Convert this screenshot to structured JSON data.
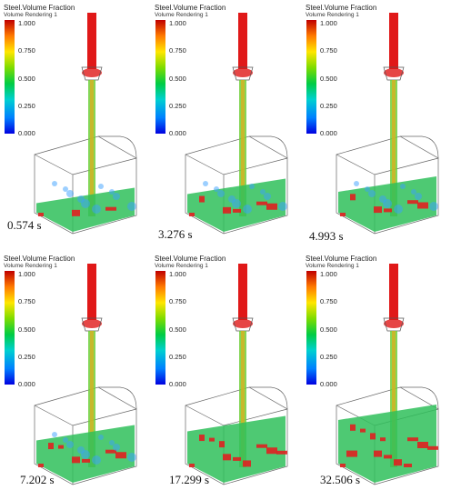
{
  "panels": [
    {
      "title": "Steel.Volume Fraction",
      "subtitle": "Volume Rendering 1",
      "ticks": [
        "1.000",
        "0.750",
        "0.500",
        "0.250",
        "0.000"
      ],
      "time": "0.574 s",
      "fill": 0.05
    },
    {
      "title": "Steel.Volume Fraction",
      "subtitle": "Volume Rendering 1",
      "ticks": [
        "1.000",
        "0.750",
        "0.500",
        "0.250",
        "0.000"
      ],
      "time": "3.276 s",
      "fill": 0.25
    },
    {
      "title": "Steel.Volume Fraction",
      "subtitle": "Volume Rendering 1",
      "ticks": [
        "1.000",
        "0.750",
        "0.500",
        "0.250",
        "0.000"
      ],
      "time": "4.993 s",
      "fill": 0.3
    },
    {
      "title": "Steel.Volume Fraction",
      "subtitle": "Volume Rendering 1",
      "ticks": [
        "1.000",
        "0.750",
        "0.500",
        "0.250",
        "0.000"
      ],
      "time": "7.202 s",
      "fill": 0.35
    },
    {
      "title": "Steel.Volume Fraction",
      "subtitle": "Volume Rendering 1",
      "ticks": [
        "1.000",
        "0.750",
        "0.500",
        "0.250",
        "0.000"
      ],
      "time": "17.299 s",
      "fill": 0.55
    },
    {
      "title": "Steel.Volume Fraction",
      "subtitle": "Volume Rendering 1",
      "ticks": [
        "1.000",
        "0.750",
        "0.500",
        "0.250",
        "0.000"
      ],
      "time": "32.506 s",
      "fill": 0.8
    }
  ],
  "colors": {
    "high": "#e02020",
    "mid": "#2fbf5a",
    "low": "#3aa0ff",
    "outline": "#555555",
    "nozzle": "#e01818"
  }
}
